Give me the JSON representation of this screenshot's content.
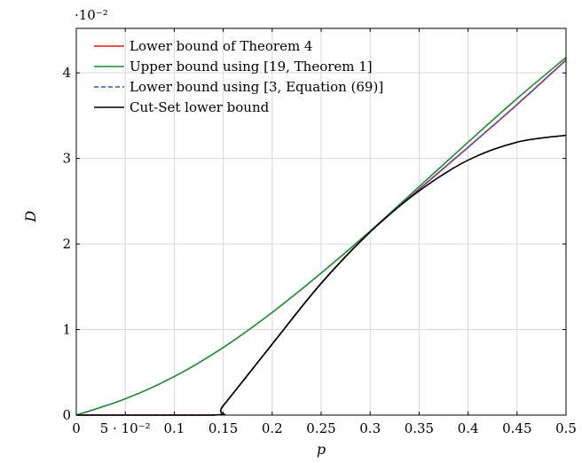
{
  "chart_data": {
    "type": "line",
    "title": "",
    "xlabel": "p",
    "ylabel": "D",
    "xlim": [
      0,
      0.5
    ],
    "ylim": [
      0,
      0.045
    ],
    "y_scale_note": "·10⁻²",
    "grid": true,
    "legend_position": "top-left",
    "x_ticks": [
      0,
      0.05,
      0.1,
      0.15,
      0.2,
      0.25,
      0.3,
      0.35,
      0.4,
      0.45,
      0.5
    ],
    "x_tick_labels": [
      "0",
      "5 · 10⁻²",
      "0.1",
      "0.15",
      "0.2",
      "0.25",
      "0.3",
      "0.35",
      "0.4",
      "0.45",
      "0.5"
    ],
    "y_ticks": [
      0,
      0.01,
      0.02,
      0.03,
      0.04
    ],
    "y_tick_labels": [
      "0",
      "1",
      "2",
      "3",
      "4"
    ],
    "series": [
      {
        "name": "Lower bound of Theorem 4",
        "color": "#e41a1c",
        "dash": false,
        "x": [
          0,
          0.14,
          0.15,
          0.2,
          0.25,
          0.3,
          0.35,
          0.4,
          0.45,
          0.5
        ],
        "y": [
          0,
          0,
          0.0011,
          0.0083,
          0.0154,
          0.0214,
          0.0264,
          0.0313,
          0.0363,
          0.0415
        ]
      },
      {
        "name": "Upper bound using [19, Theorem 1]",
        "color": "#1a8a2e",
        "dash": false,
        "x": [
          0,
          0.05,
          0.1,
          0.15,
          0.2,
          0.25,
          0.3,
          0.35,
          0.4,
          0.45,
          0.5
        ],
        "y": [
          0,
          0.0019,
          0.0045,
          0.0079,
          0.012,
          0.0166,
          0.0215,
          0.0267,
          0.0319,
          0.037,
          0.0418
        ]
      },
      {
        "name": "Lower bound using [3, Equation (69)]",
        "color": "#3355cc",
        "dash": true,
        "x": [
          0,
          0.14,
          0.15,
          0.2,
          0.25,
          0.3,
          0.35,
          0.4,
          0.45,
          0.5
        ],
        "y": [
          0,
          0,
          0.0011,
          0.0083,
          0.0154,
          0.0214,
          0.0264,
          0.0313,
          0.0363,
          0.0415
        ]
      },
      {
        "name": "Cut-Set lower bound",
        "color": "#000000",
        "dash": false,
        "x": [
          0,
          0.14,
          0.15,
          0.2,
          0.25,
          0.3,
          0.35,
          0.4,
          0.45,
          0.5
        ],
        "y": [
          0,
          0,
          0.0011,
          0.0083,
          0.0154,
          0.0214,
          0.0262,
          0.0298,
          0.0319,
          0.0327
        ]
      }
    ]
  }
}
